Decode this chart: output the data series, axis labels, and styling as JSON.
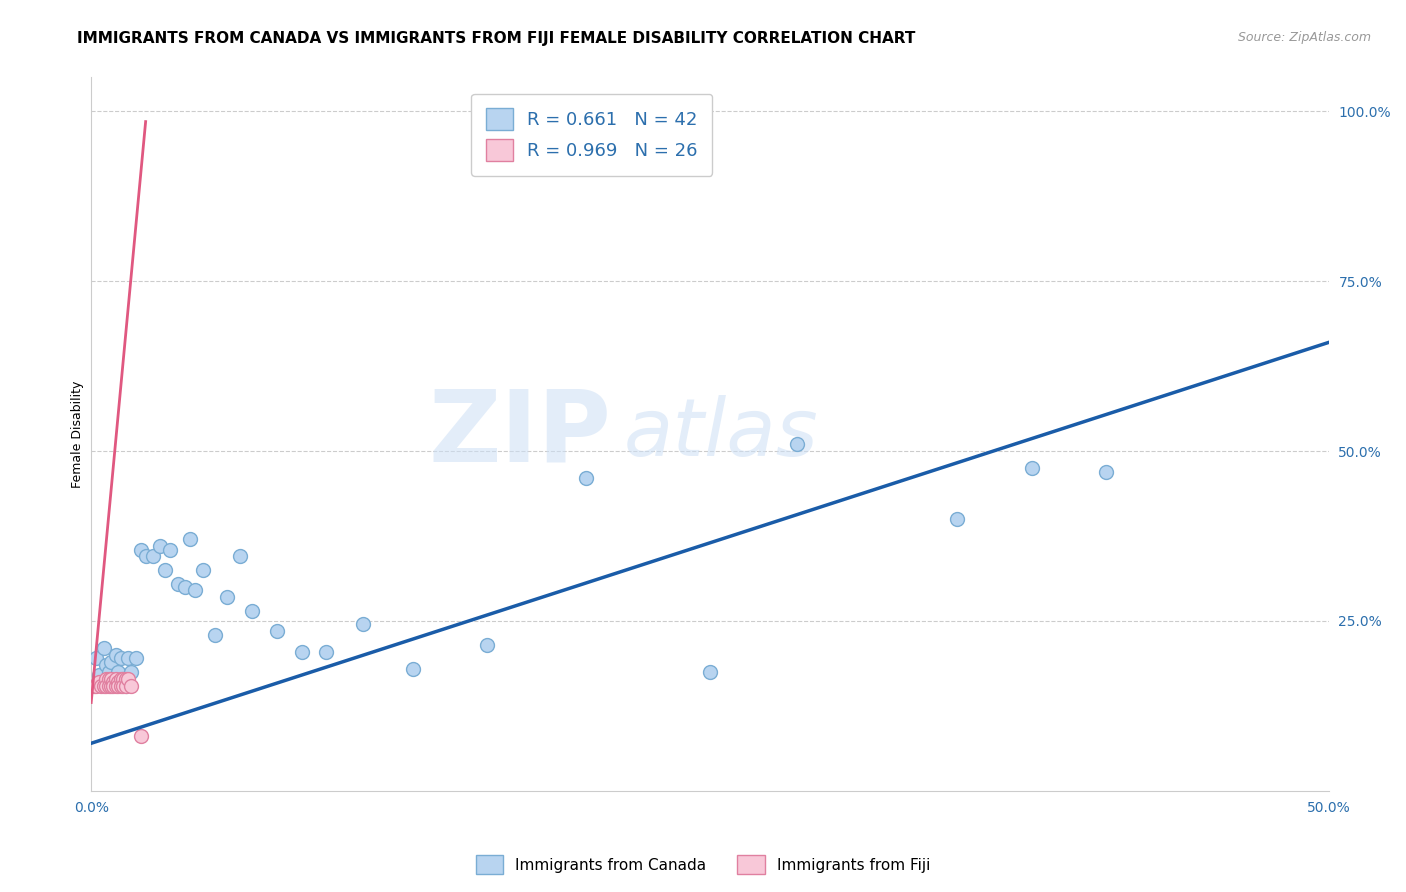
{
  "title": "IMMIGRANTS FROM CANADA VS IMMIGRANTS FROM FIJI FEMALE DISABILITY CORRELATION CHART",
  "source": "Source: ZipAtlas.com",
  "ylabel": "Female Disability",
  "xlim": [
    0.0,
    0.5
  ],
  "ylim": [
    0.0,
    1.05
  ],
  "x_ticks": [
    0.0,
    0.5
  ],
  "x_tick_labels": [
    "0.0%",
    "50.0%"
  ],
  "y_ticks": [
    0.25,
    0.5,
    0.75,
    1.0
  ],
  "y_tick_labels": [
    "25.0%",
    "50.0%",
    "75.0%",
    "100.0%"
  ],
  "canada_scatter_x": [
    0.002,
    0.003,
    0.005,
    0.006,
    0.007,
    0.008,
    0.009,
    0.01,
    0.011,
    0.012,
    0.013,
    0.014,
    0.015,
    0.016,
    0.018,
    0.02,
    0.022,
    0.025,
    0.028,
    0.03,
    0.032,
    0.035,
    0.038,
    0.04,
    0.042,
    0.045,
    0.05,
    0.055,
    0.06,
    0.065,
    0.075,
    0.085,
    0.095,
    0.11,
    0.13,
    0.16,
    0.2,
    0.25,
    0.285,
    0.35,
    0.38,
    0.41
  ],
  "canada_scatter_y": [
    0.195,
    0.17,
    0.21,
    0.185,
    0.175,
    0.19,
    0.165,
    0.2,
    0.175,
    0.195,
    0.165,
    0.155,
    0.195,
    0.175,
    0.195,
    0.355,
    0.345,
    0.345,
    0.36,
    0.325,
    0.355,
    0.305,
    0.3,
    0.37,
    0.295,
    0.325,
    0.23,
    0.285,
    0.345,
    0.265,
    0.235,
    0.205,
    0.205,
    0.245,
    0.18,
    0.215,
    0.46,
    0.175,
    0.51,
    0.4,
    0.475,
    0.47
  ],
  "fiji_scatter_x": [
    0.001,
    0.002,
    0.003,
    0.004,
    0.005,
    0.006,
    0.006,
    0.007,
    0.007,
    0.008,
    0.008,
    0.009,
    0.009,
    0.01,
    0.01,
    0.011,
    0.011,
    0.012,
    0.012,
    0.013,
    0.013,
    0.014,
    0.014,
    0.015,
    0.016,
    0.02
  ],
  "fiji_scatter_y": [
    0.155,
    0.155,
    0.16,
    0.155,
    0.155,
    0.165,
    0.155,
    0.165,
    0.155,
    0.165,
    0.155,
    0.16,
    0.155,
    0.165,
    0.155,
    0.16,
    0.155,
    0.165,
    0.155,
    0.165,
    0.155,
    0.165,
    0.155,
    0.165,
    0.155,
    0.08
  ],
  "canada_line_x": [
    0.0,
    0.5
  ],
  "canada_line_y": [
    0.07,
    0.66
  ],
  "fiji_line_x": [
    0.0,
    0.022
  ],
  "fiji_line_y": [
    0.13,
    0.985
  ],
  "scatter_size": 100,
  "canada_scatter_color": "#b8d4f0",
  "canada_scatter_edge": "#7aadd4",
  "fiji_scatter_color": "#f8c8d8",
  "fiji_scatter_edge": "#e080a0",
  "canada_line_color": "#1a5ca8",
  "fiji_line_color": "#e05880",
  "grid_color": "#cccccc",
  "background_color": "#ffffff",
  "watermark_zip": "ZIP",
  "watermark_atlas": "atlas",
  "title_fontsize": 11,
  "axis_label_fontsize": 9,
  "tick_fontsize": 10,
  "legend_fontsize": 13
}
